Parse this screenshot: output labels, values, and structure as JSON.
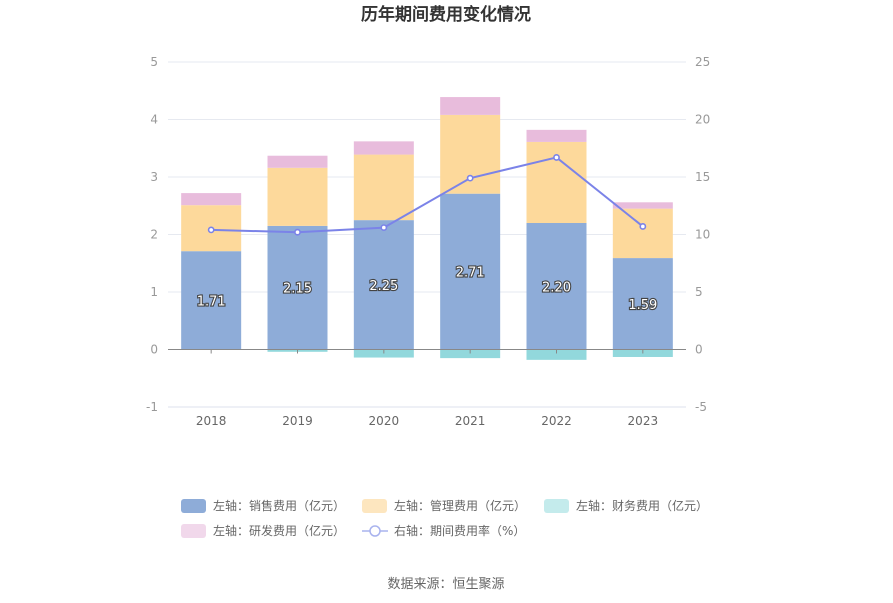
{
  "chart_data": {
    "type": "bar",
    "title": "历年期间费用变化情况",
    "categories": [
      "2018",
      "2019",
      "2020",
      "2021",
      "2022",
      "2023"
    ],
    "series": [
      {
        "name": "左轴：销售费用（亿元）",
        "stack": "left",
        "color": "#8eacd8",
        "values": [
          1.71,
          2.15,
          2.25,
          2.71,
          2.2,
          1.59
        ],
        "labels": [
          "1.71",
          "2.15",
          "2.25",
          "2.71",
          "2.20",
          "1.59"
        ]
      },
      {
        "name": "左轴：管理费用（亿元）",
        "stack": "left",
        "color": "#fdd99b",
        "values": [
          0.8,
          1.01,
          1.14,
          1.37,
          1.41,
          0.86
        ]
      },
      {
        "name": "左轴：财务费用（亿元）",
        "stack": "left",
        "color": "#92d8dc",
        "values": [
          0.0,
          -0.04,
          -0.14,
          -0.15,
          -0.18,
          -0.13
        ]
      },
      {
        "name": "左轴：研发费用（亿元）",
        "stack": "left",
        "color": "#e8bcdc",
        "values": [
          0.21,
          0.21,
          0.23,
          0.31,
          0.21,
          0.11
        ]
      },
      {
        "name": "右轴：期间费用率（%）",
        "axis": "right",
        "type": "line",
        "color": "#7b83e8",
        "values": [
          10.4,
          10.2,
          10.6,
          14.9,
          16.7,
          10.7
        ]
      }
    ],
    "yleft": {
      "ylim": [
        -1,
        5
      ],
      "ticks": [
        "-1",
        "0",
        "1",
        "2",
        "3",
        "4",
        "5"
      ]
    },
    "yright": {
      "ylim": [
        -5,
        25
      ],
      "ticks": [
        "-5",
        "0",
        "5",
        "10",
        "15",
        "20",
        "25"
      ]
    },
    "grid": true,
    "legend_position": "bottom",
    "source": "数据来源：恒生聚源"
  }
}
